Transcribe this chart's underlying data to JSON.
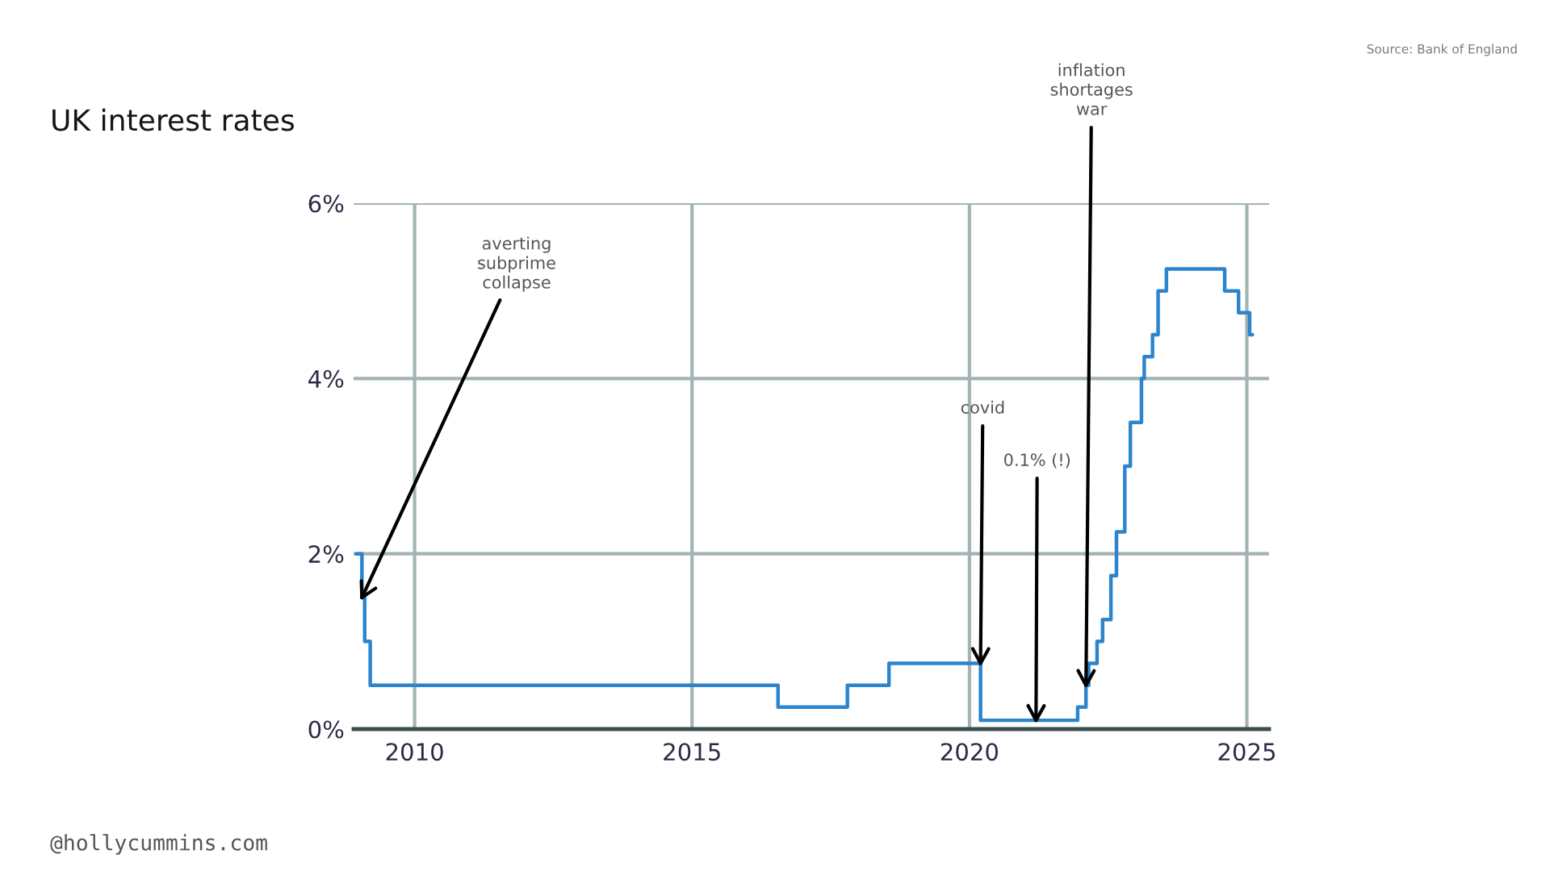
{
  "chart_data": {
    "type": "step",
    "title": "UK interest rates",
    "x": [
      2008.95,
      2009.05,
      2009.1,
      2009.2,
      2016.55,
      2017.8,
      2018.55,
      2020.2,
      2021.95,
      2022.1,
      2022.15,
      2022.3,
      2022.4,
      2022.55,
      2022.65,
      2022.8,
      2022.9,
      2023.1,
      2023.15,
      2023.3,
      2023.4,
      2023.55,
      2024.6,
      2024.85,
      2025.05,
      2025.1
    ],
    "values": [
      2,
      1.5,
      1,
      0.5,
      0.25,
      0.5,
      0.75,
      0.1,
      0.25,
      0.5,
      0.75,
      1,
      1.25,
      1.75,
      2.25,
      3,
      3.5,
      4,
      4.25,
      4.5,
      5,
      5.25,
      5,
      4.75,
      4.5,
      4.5
    ],
    "color": "#2b84cc",
    "xlim": [
      2008.9,
      2025.4
    ],
    "ylim": [
      0,
      6
    ],
    "xticks": [
      2010,
      2015,
      2020,
      2025
    ],
    "yticks": [
      {
        "value": 0,
        "label": "0%"
      },
      {
        "value": 2,
        "label": "2%"
      },
      {
        "value": 4,
        "label": "4%"
      },
      {
        "value": 6,
        "label": "6%"
      }
    ],
    "grid": true,
    "annotations": [
      {
        "text": "averting\nsubprime\ncollapse",
        "x": 2009.05,
        "y": 1.5
      },
      {
        "text": "covid",
        "x": 2020.2,
        "y": 0.75
      },
      {
        "text": "0.1% (!)",
        "x": 2021.2,
        "y": 0.1
      },
      {
        "text": "inflation\nshortages\nwar",
        "x": 2022.1,
        "y": 0.5
      },
      "Source: Bank of England",
      "@hollycummins.com"
    ]
  }
}
